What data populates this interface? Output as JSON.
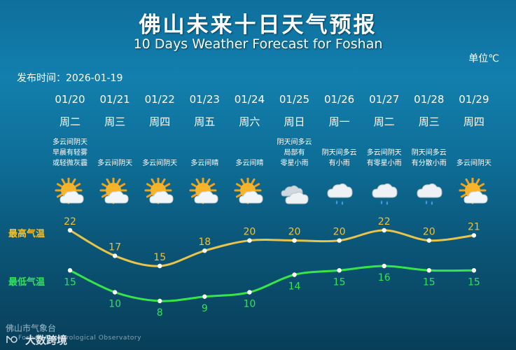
{
  "header": {
    "title_cn": "佛山未来十日天气预报",
    "title_en": "10 Days Weather Forecast for Foshan",
    "unit": "单位℃",
    "published": "发布时间：2026-01-19"
  },
  "labels": {
    "high": "最高气温",
    "low": "最低气温"
  },
  "colors": {
    "high_line": "#e8c44a",
    "low_line": "#35e649",
    "high_text": "#f2c232",
    "low_text": "#2fe25a"
  },
  "days": [
    {
      "date": "01/20",
      "weekday": "周二",
      "desc": [
        "多云间阴天",
        "早晨有轻雾",
        "或轻微灰霾"
      ],
      "icon": "sun-cloud-icon",
      "high": 22,
      "low": 15
    },
    {
      "date": "01/21",
      "weekday": "周三",
      "desc": [
        "多云间阴天"
      ],
      "icon": "sun-cloud-icon",
      "high": 17,
      "low": 10
    },
    {
      "date": "01/22",
      "weekday": "周四",
      "desc": [
        "多云间阴天"
      ],
      "icon": "sun-cloud-icon",
      "high": 15,
      "low": 8
    },
    {
      "date": "01/23",
      "weekday": "周五",
      "desc": [
        "多云间晴"
      ],
      "icon": "sun-cloud-icon",
      "high": 18,
      "low": 9
    },
    {
      "date": "01/24",
      "weekday": "周六",
      "desc": [
        "多云间晴"
      ],
      "icon": "sun-cloud-icon",
      "high": 20,
      "low": 10
    },
    {
      "date": "01/25",
      "weekday": "周日",
      "desc": [
        "阴天间多云",
        "局部有",
        "零星小雨"
      ],
      "icon": "overcast-icon",
      "high": 20,
      "low": 14
    },
    {
      "date": "01/26",
      "weekday": "周一",
      "desc": [
        "阴天间多云",
        "有小雨"
      ],
      "icon": "rain-cloud-icon",
      "high": 20,
      "low": 15
    },
    {
      "date": "01/27",
      "weekday": "周二",
      "desc": [
        "多云间阴天",
        "有零星小雨"
      ],
      "icon": "rain-cloud-icon",
      "high": 22,
      "low": 16
    },
    {
      "date": "01/28",
      "weekday": "周三",
      "desc": [
        "阴天间多云",
        "有分散小雨"
      ],
      "icon": "rain-cloud-icon",
      "high": 20,
      "low": 15
    },
    {
      "date": "01/29",
      "weekday": "周四",
      "desc": [
        "多云间阴天"
      ],
      "icon": "sun-cloud-icon",
      "high": 21,
      "low": 15
    }
  ],
  "footer": {
    "org_cn": "佛山市气象台",
    "org_en": "Foshan Meteorological Observatory",
    "watermark": "大数跨境"
  }
}
